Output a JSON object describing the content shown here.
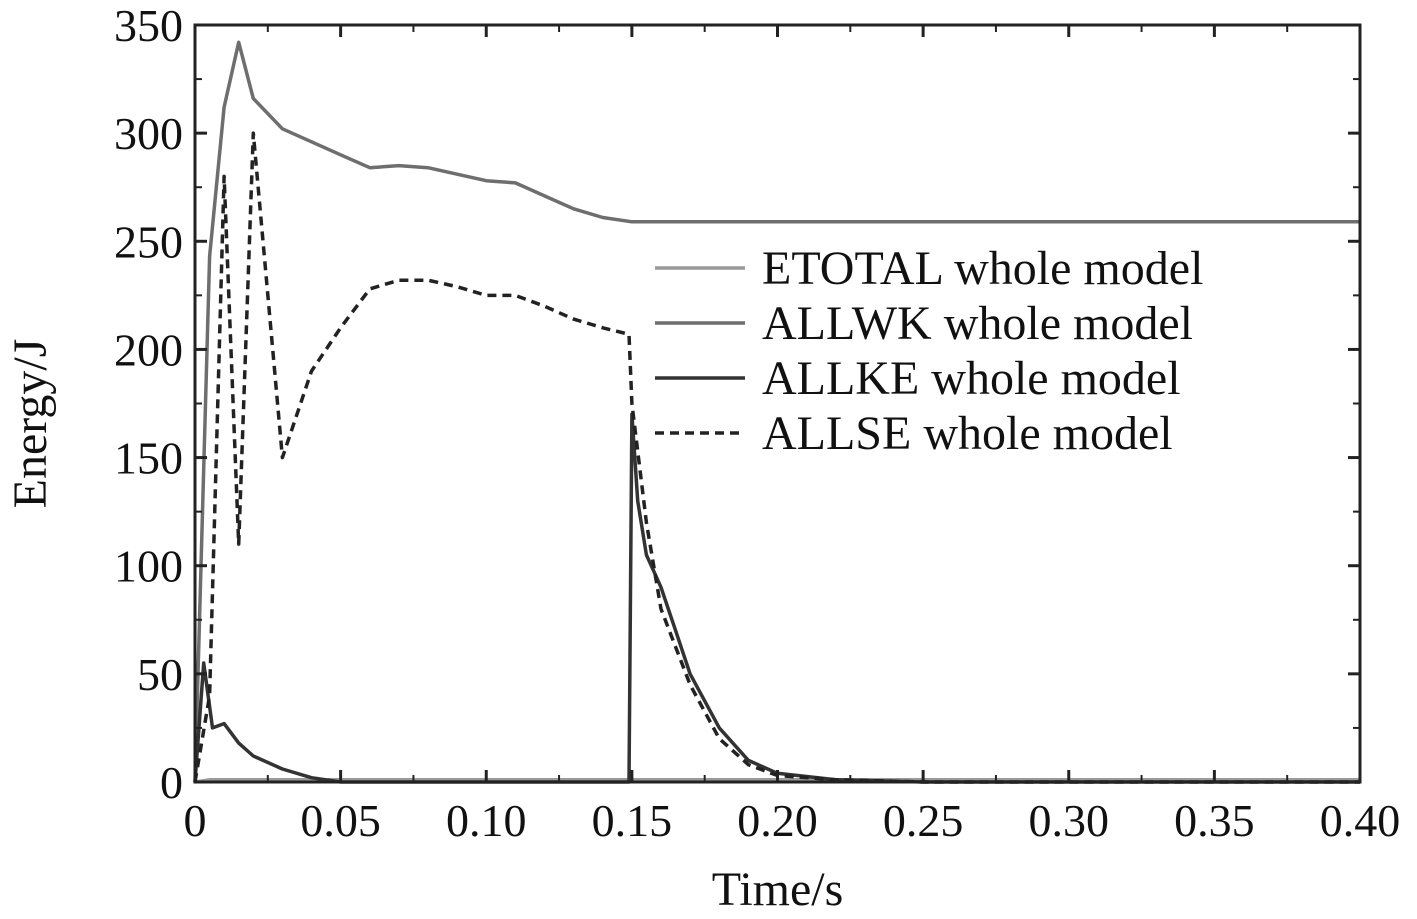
{
  "chart_data": {
    "type": "line",
    "title": "",
    "xlabel": "Time/s",
    "ylabel": "Energy/J",
    "xlim": [
      0,
      0.4
    ],
    "ylim": [
      0,
      350
    ],
    "xticks": [
      0,
      0.05,
      0.1,
      0.15,
      0.2,
      0.25,
      0.3,
      0.35,
      0.4
    ],
    "xtick_labels": [
      "0",
      "0.05",
      "0.10",
      "0.15",
      "0.20",
      "0.25",
      "0.30",
      "0.35",
      "0.40"
    ],
    "yticks": [
      0,
      50,
      100,
      150,
      200,
      250,
      300,
      350
    ],
    "ytick_labels": [
      "0",
      "50",
      "100",
      "150",
      "200",
      "250",
      "300",
      "350"
    ],
    "grid": false,
    "legend_position": "center-right",
    "series": [
      {
        "name": "ETOTAL whole model",
        "color": "#9a9a9a",
        "style": "solid",
        "x": [
          0,
          0.005,
          0.01,
          0.02,
          0.05,
          0.1,
          0.15,
          0.2,
          0.3,
          0.4
        ],
        "y": [
          0,
          1,
          1,
          1,
          1,
          1,
          1,
          1,
          1,
          1
        ]
      },
      {
        "name": "ALLWK whole model",
        "color": "#6e6e6e",
        "style": "solid",
        "x": [
          0,
          0.005,
          0.01,
          0.015,
          0.02,
          0.03,
          0.04,
          0.05,
          0.06,
          0.07,
          0.08,
          0.09,
          0.1,
          0.11,
          0.12,
          0.13,
          0.14,
          0.15,
          0.2,
          0.3,
          0.4
        ],
        "y": [
          0,
          243,
          312,
          342,
          316,
          302,
          296,
          290,
          284,
          285,
          284,
          281,
          278,
          277,
          271,
          265,
          261,
          259,
          259,
          259,
          259
        ]
      },
      {
        "name": "ALLKE whole model",
        "color": "#333333",
        "style": "solid",
        "x": [
          0,
          0.003,
          0.006,
          0.01,
          0.015,
          0.02,
          0.03,
          0.04,
          0.05,
          0.1,
          0.149,
          0.15,
          0.152,
          0.155,
          0.16,
          0.165,
          0.17,
          0.18,
          0.19,
          0.2,
          0.22,
          0.25,
          0.3,
          0.35,
          0.4
        ],
        "y": [
          0,
          55,
          25,
          27,
          18,
          12,
          6,
          2,
          0,
          0,
          0,
          170,
          130,
          105,
          90,
          70,
          50,
          25,
          10,
          4,
          1,
          0,
          0,
          0,
          0
        ]
      },
      {
        "name": "ALLSE whole model",
        "color": "#222222",
        "style": "dashed",
        "x": [
          0,
          0.005,
          0.01,
          0.015,
          0.02,
          0.03,
          0.04,
          0.05,
          0.06,
          0.07,
          0.08,
          0.09,
          0.1,
          0.11,
          0.12,
          0.13,
          0.14,
          0.149,
          0.15,
          0.155,
          0.16,
          0.17,
          0.18,
          0.19,
          0.2,
          0.22,
          0.25,
          0.3,
          0.4
        ],
        "y": [
          0,
          40,
          280,
          110,
          300,
          150,
          190,
          210,
          228,
          232,
          232,
          229,
          225,
          225,
          220,
          214,
          210,
          207,
          175,
          120,
          80,
          45,
          20,
          8,
          3,
          1,
          0,
          0,
          0
        ]
      }
    ]
  }
}
